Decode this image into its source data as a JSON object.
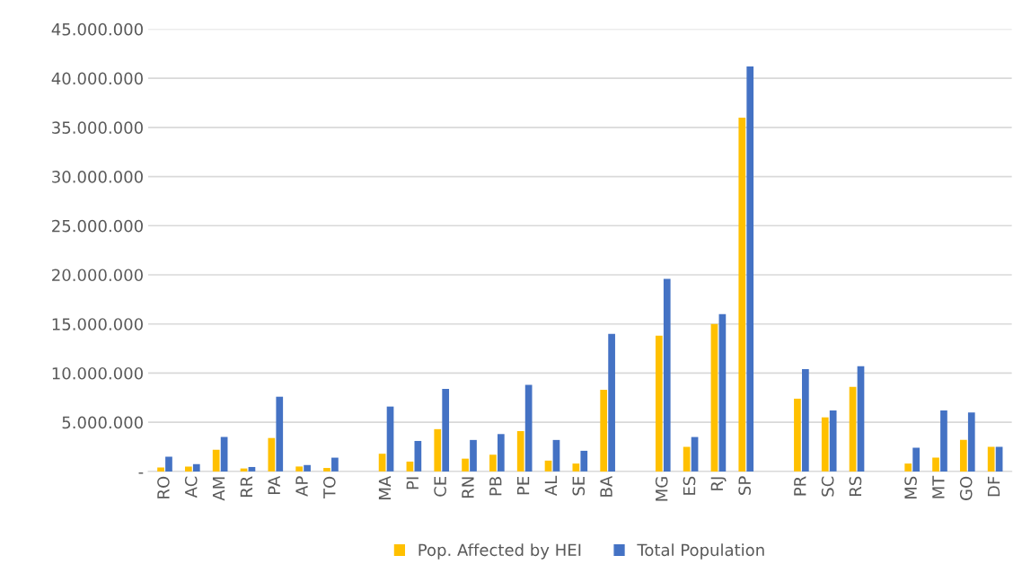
{
  "chart_data": {
    "type": "bar",
    "categories": [
      "RO",
      "AC",
      "AM",
      "RR",
      "PA",
      "AP",
      "TO",
      null,
      "MA",
      "PI",
      "CE",
      "RN",
      "PB",
      "PE",
      "AL",
      "SE",
      "BA",
      null,
      "MG",
      "ES",
      "RJ",
      "SP",
      null,
      "PR",
      "SC",
      "RS",
      null,
      "MS",
      "MT",
      "GO",
      "DF"
    ],
    "series": [
      {
        "name": "Pop. Affected by HEI",
        "color": "#ffc000",
        "values": [
          400000,
          500000,
          2200000,
          300000,
          3400000,
          500000,
          350000,
          null,
          1800000,
          1000000,
          4300000,
          1300000,
          1700000,
          4100000,
          1100000,
          800000,
          8300000,
          null,
          13800000,
          2500000,
          15000000,
          36000000,
          null,
          7400000,
          5500000,
          8600000,
          null,
          800000,
          1400000,
          3200000,
          2500000
        ]
      },
      {
        "name": "Total Population",
        "color": "#4472c4",
        "values": [
          1500000,
          750000,
          3500000,
          450000,
          7600000,
          650000,
          1400000,
          null,
          6600000,
          3100000,
          8400000,
          3200000,
          3800000,
          8800000,
          3200000,
          2100000,
          14000000,
          null,
          19600000,
          3500000,
          16000000,
          41200000,
          null,
          10400000,
          6200000,
          10700000,
          null,
          2400000,
          6200000,
          6000000,
          2500000
        ]
      }
    ],
    "ylim": [
      0,
      45000000
    ],
    "yticks": [
      {
        "value": 0,
        "label": "-"
      },
      {
        "value": 5000000,
        "label": "5.000.000"
      },
      {
        "value": 10000000,
        "label": "10.000.000"
      },
      {
        "value": 15000000,
        "label": "15.000.000"
      },
      {
        "value": 20000000,
        "label": "20.000.000"
      },
      {
        "value": 25000000,
        "label": "25.000.000"
      },
      {
        "value": 30000000,
        "label": "30.000.000"
      },
      {
        "value": 35000000,
        "label": "35.000.000"
      },
      {
        "value": 40000000,
        "label": "40.000.000"
      },
      {
        "value": 45000000,
        "label": "45.000.000"
      }
    ],
    "grid": "y",
    "legend": "bottom"
  }
}
